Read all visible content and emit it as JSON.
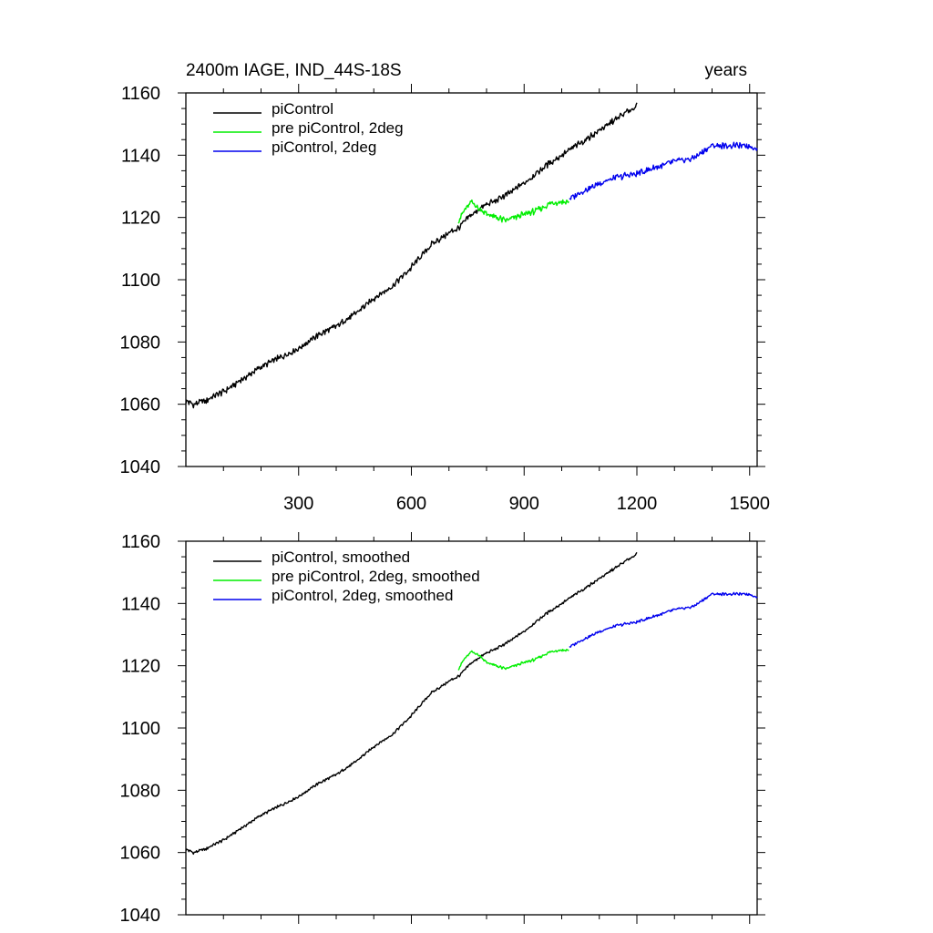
{
  "chart_data": [
    {
      "type": "line",
      "title_left": "2400m IAGE, IND_44S-18S",
      "title_right": "years",
      "xlabel": "",
      "ylabel": "",
      "xlim": [
        0,
        1520
      ],
      "ylim": [
        1040,
        1160
      ],
      "xticks": [
        300,
        600,
        900,
        1200,
        1500
      ],
      "xtick_labels": [
        "300",
        "600",
        "900",
        "1200",
        "1500"
      ],
      "yticks": [
        1040,
        1060,
        1080,
        1100,
        1120,
        1140,
        1160
      ],
      "ytick_labels": [
        "1040",
        "1060",
        "1080",
        "1100",
        "1120",
        "1140",
        "1160"
      ],
      "legend": "top-left",
      "series": [
        {
          "name": "piControl",
          "color": "#000000",
          "x": [
            0,
            20,
            50,
            100,
            150,
            200,
            250,
            300,
            350,
            400,
            450,
            500,
            550,
            600,
            650,
            700,
            730,
            760,
            800,
            850,
            900,
            950,
            1000,
            1050,
            1100,
            1150,
            1200
          ],
          "y": [
            1061,
            1060,
            1061,
            1064,
            1068,
            1072,
            1075,
            1078,
            1082,
            1085,
            1089,
            1094,
            1098,
            1104,
            1111,
            1115,
            1117,
            1121,
            1124,
            1127,
            1131,
            1136,
            1140,
            1144,
            1148,
            1152,
            1156
          ]
        },
        {
          "name": "pre piControl, 2deg",
          "color": "#00ee00",
          "x": [
            725,
            740,
            760,
            780,
            800,
            825,
            850,
            875,
            900,
            930,
            960,
            990,
            1020
          ],
          "y": [
            1119,
            1122,
            1125,
            1123,
            1121,
            1120,
            1119,
            1120,
            1121,
            1122,
            1124,
            1125,
            1125
          ]
        },
        {
          "name": "piControl, 2deg",
          "color": "#0000ee",
          "x": [
            1020,
            1050,
            1100,
            1150,
            1200,
            1250,
            1300,
            1350,
            1400,
            1450,
            1500,
            1520
          ],
          "y": [
            1126,
            1128,
            1131,
            1133,
            1134,
            1136,
            1138,
            1139,
            1143,
            1143,
            1143,
            1142
          ]
        }
      ]
    },
    {
      "type": "line",
      "xlabel": "",
      "ylabel": "",
      "xlim": [
        0,
        1520
      ],
      "ylim": [
        1040,
        1160
      ],
      "xticks": [
        300,
        600,
        900,
        1200,
        1500
      ],
      "yticks": [
        1040,
        1060,
        1080,
        1100,
        1120,
        1140,
        1160
      ],
      "ytick_labels": [
        "1040",
        "1060",
        "1080",
        "1100",
        "1120",
        "1140",
        "1160"
      ],
      "legend": "top-left",
      "series": [
        {
          "name": "piControl, smoothed",
          "color": "#000000",
          "x": [
            0,
            20,
            50,
            100,
            150,
            200,
            250,
            300,
            350,
            400,
            450,
            500,
            550,
            600,
            650,
            700,
            730,
            760,
            800,
            850,
            900,
            950,
            1000,
            1050,
            1100,
            1150,
            1200
          ],
          "y": [
            1061,
            1060,
            1061,
            1064,
            1068,
            1072,
            1075,
            1078,
            1082,
            1085,
            1089,
            1094,
            1098,
            1104,
            1111,
            1115,
            1117,
            1121,
            1124,
            1127,
            1131,
            1136,
            1140,
            1144,
            1148,
            1152,
            1156
          ]
        },
        {
          "name": "pre piControl, 2deg, smoothed",
          "color": "#00ee00",
          "x": [
            725,
            740,
            760,
            780,
            800,
            825,
            850,
            875,
            900,
            930,
            960,
            990,
            1020
          ],
          "y": [
            1119,
            1122,
            1124.5,
            1123.5,
            1121,
            1120,
            1119,
            1120,
            1121,
            1122,
            1124,
            1125,
            1125
          ]
        },
        {
          "name": "piControl, 2deg, smoothed",
          "color": "#0000ee",
          "x": [
            1020,
            1050,
            1100,
            1150,
            1200,
            1250,
            1300,
            1350,
            1400,
            1450,
            1500,
            1520
          ],
          "y": [
            1126,
            1128,
            1131,
            1133,
            1134,
            1136,
            1138,
            1139,
            1143,
            1143,
            1143,
            1142
          ]
        }
      ]
    }
  ]
}
